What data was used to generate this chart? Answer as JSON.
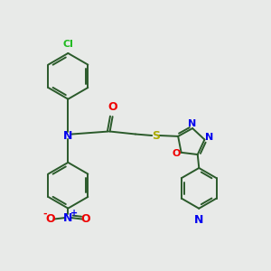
{
  "background_color": "#e8eae8",
  "bond_color": "#2a5a2a",
  "atom_colors": {
    "Cl": "#22bb22",
    "N": "#0000ee",
    "O": "#ee0000",
    "S": "#aaaa00",
    "C": "#2a5a2a"
  },
  "figsize": [
    3.0,
    3.0
  ],
  "dpi": 100,
  "xlim": [
    0,
    10
  ],
  "ylim": [
    0,
    10
  ]
}
